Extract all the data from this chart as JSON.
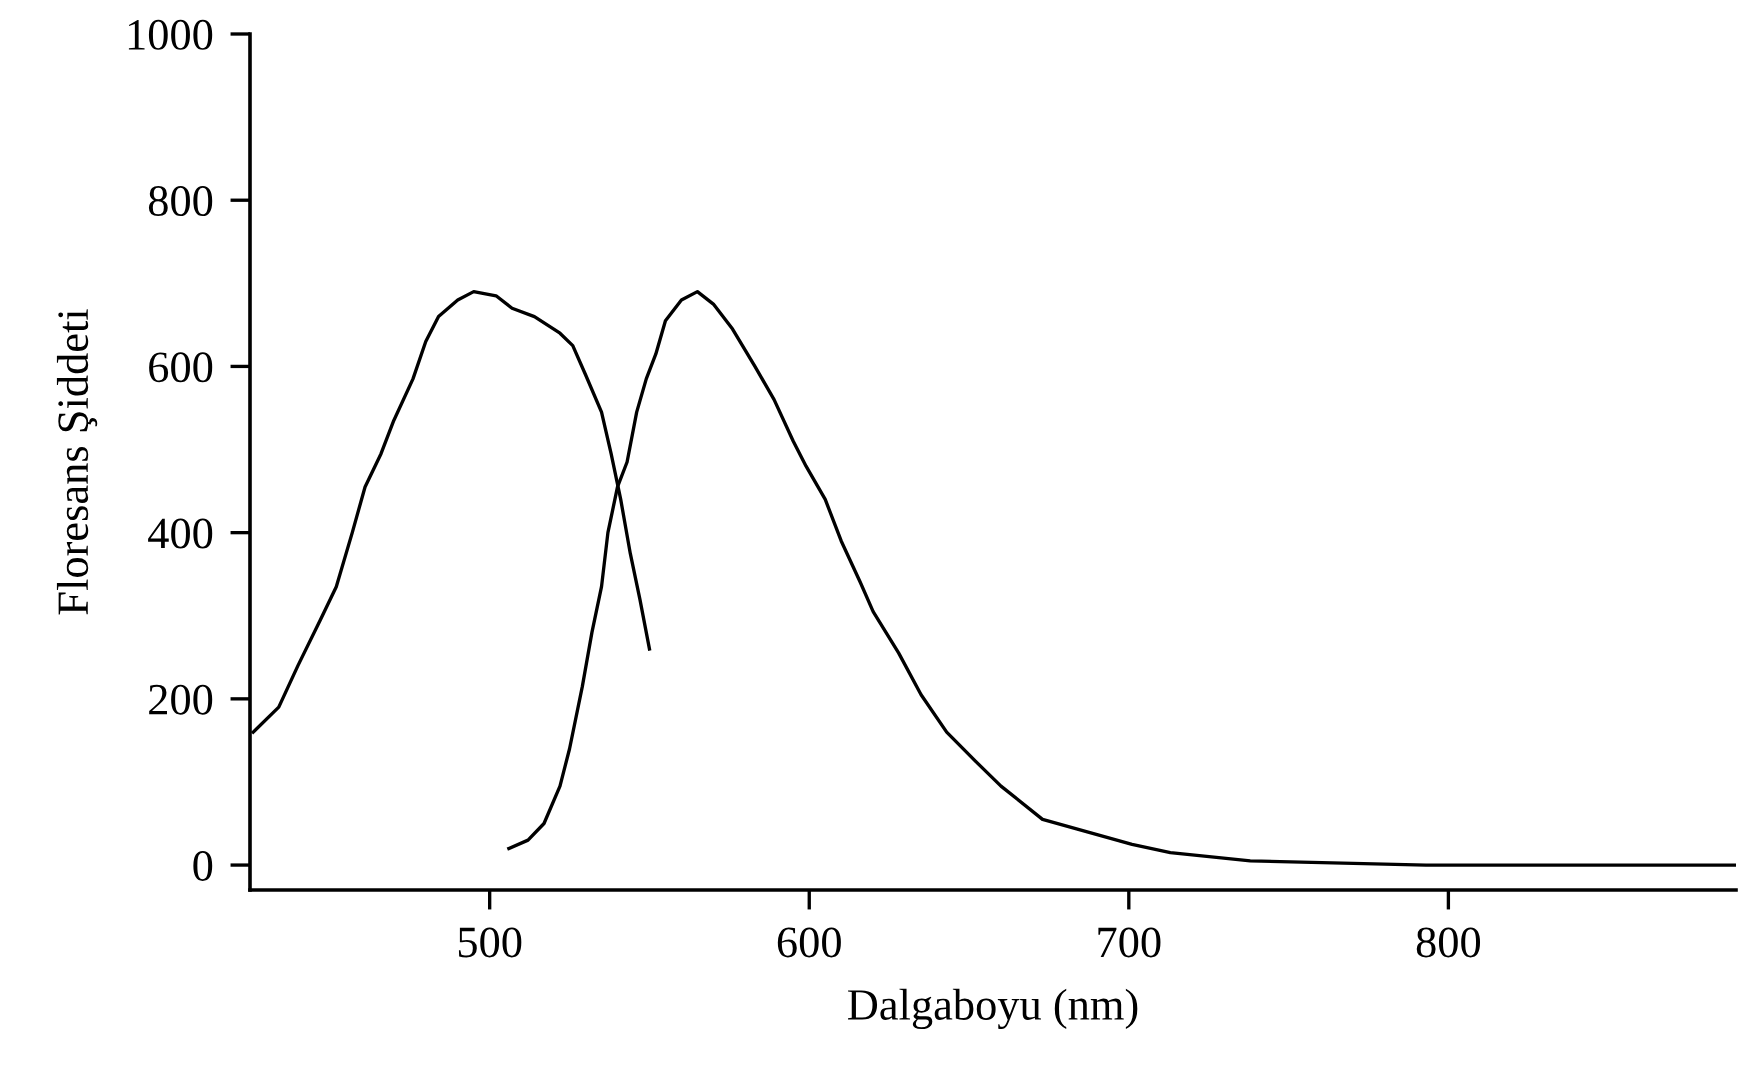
{
  "chart_data": {
    "type": "line",
    "xlabel": "Dalgaboyu (nm)",
    "ylabel": "Floresans Şiddeti",
    "xlim": [
      425,
      890
    ],
    "ylim": [
      -30,
      1000
    ],
    "xticks": [
      500,
      600,
      700,
      800
    ],
    "yticks": [
      0,
      200,
      400,
      600,
      800,
      1000
    ],
    "marker": "none",
    "line_style": "solid",
    "series": [
      {
        "color": "#000000",
        "x": [
          426,
          434,
          440,
          447,
          452,
          457,
          461,
          466,
          470,
          476,
          480,
          484,
          490,
          495,
          502,
          507,
          514,
          522,
          526,
          530,
          535,
          538,
          541,
          544,
          547,
          550
        ],
        "values": [
          160,
          190,
          240,
          295,
          335,
          400,
          455,
          495,
          535,
          585,
          630,
          660,
          680,
          690,
          685,
          670,
          660,
          640,
          625,
          590,
          545,
          495,
          440,
          375,
          320,
          260
        ]
      },
      {
        "color": "#000000",
        "x": [
          506,
          512,
          517,
          522,
          525,
          529,
          532,
          535,
          537,
          540,
          543,
          546,
          549,
          552,
          555,
          560,
          565,
          570,
          576,
          583,
          589,
          595,
          599,
          605,
          610,
          616,
          620,
          628,
          635,
          643,
          652,
          660,
          673,
          687,
          701,
          713,
          738,
          793,
          890
        ],
        "values": [
          20,
          30,
          50,
          95,
          140,
          215,
          280,
          335,
          400,
          455,
          485,
          545,
          585,
          615,
          655,
          680,
          690,
          675,
          645,
          600,
          560,
          510,
          480,
          440,
          390,
          340,
          305,
          255,
          205,
          160,
          125,
          95,
          55,
          40,
          25,
          15,
          5,
          0,
          0
        ]
      }
    ]
  }
}
